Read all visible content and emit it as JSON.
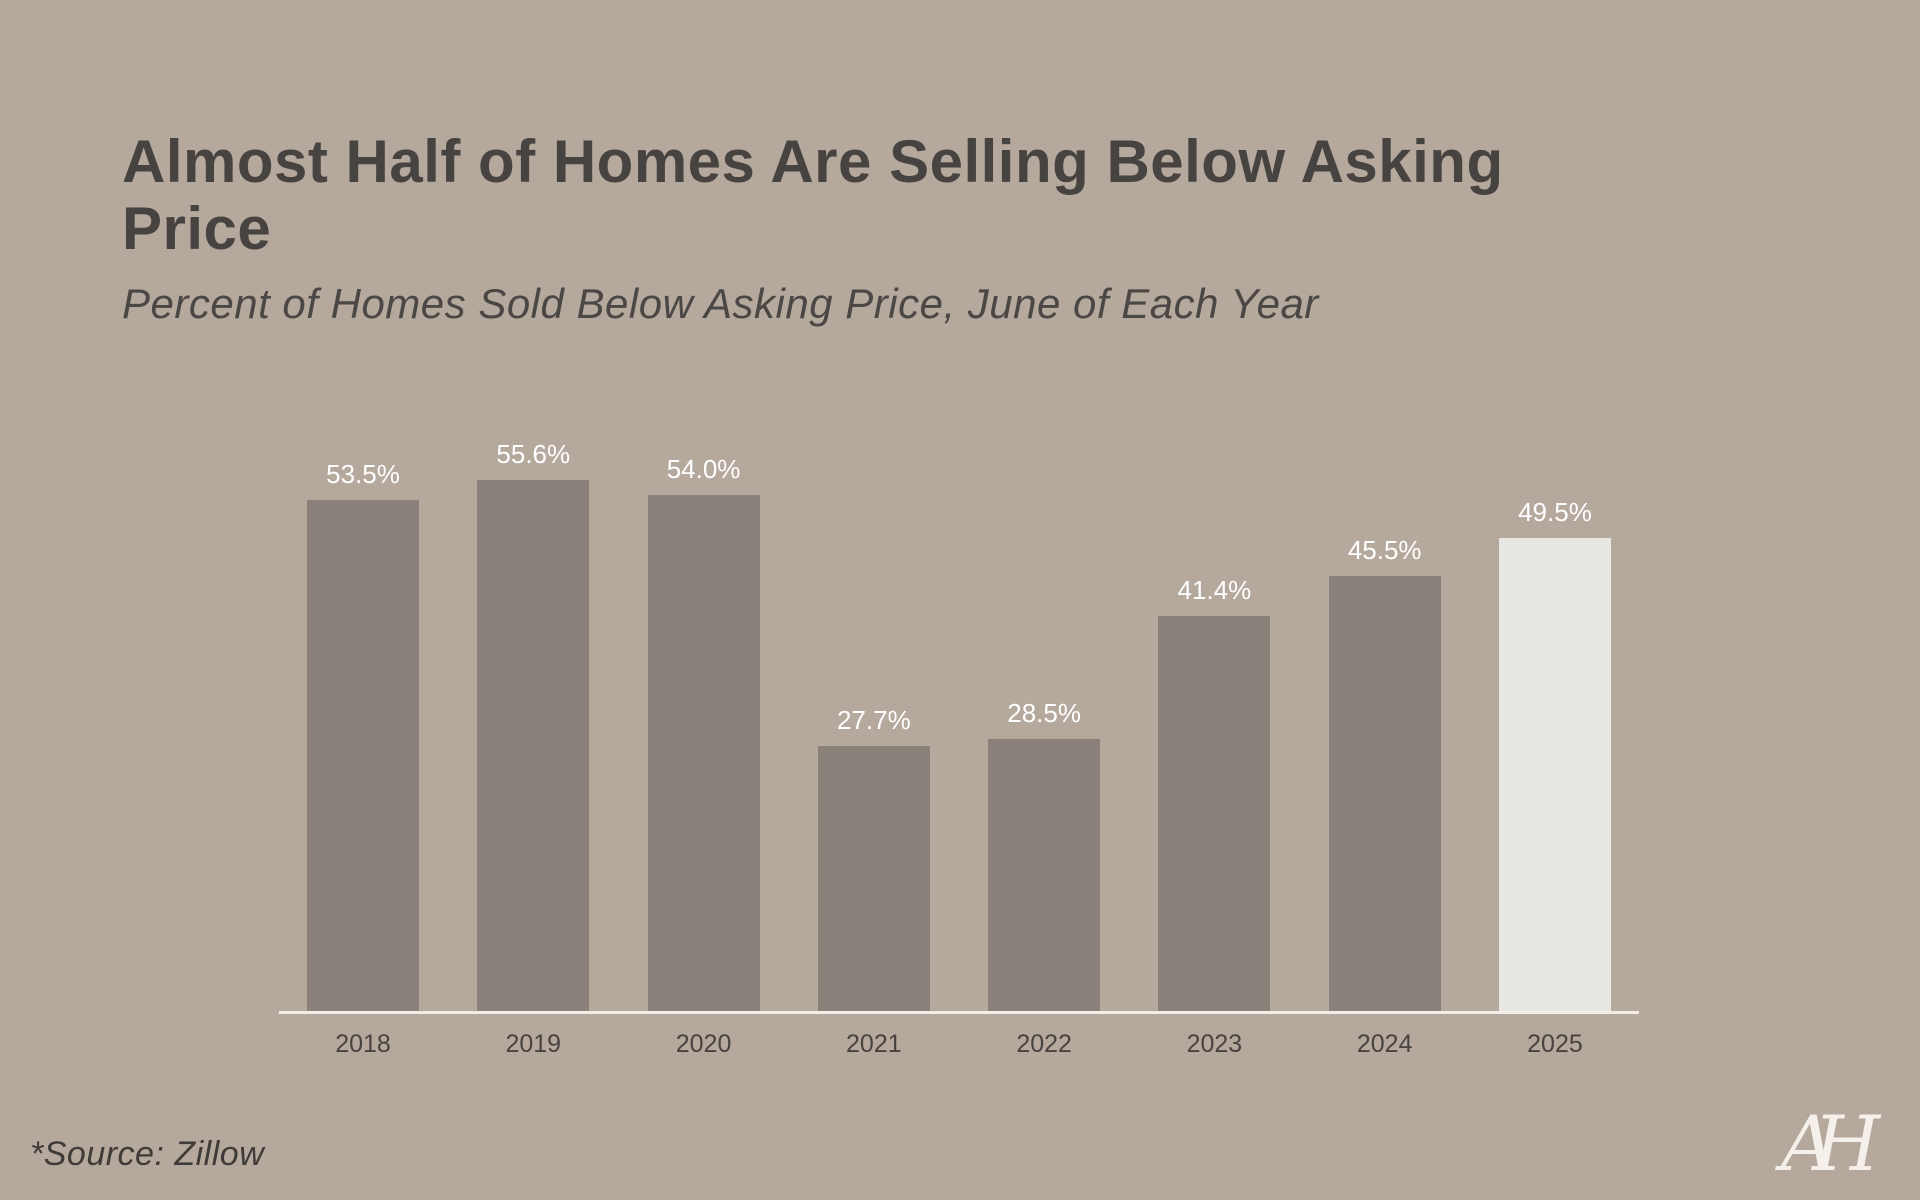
{
  "page": {
    "background_color": "#b5a89c"
  },
  "header": {
    "title": "Almost Half of Homes Are Selling Below Asking Price",
    "subtitle": "Percent of Homes Sold Below Asking Price, June of Each Year"
  },
  "chart_data": {
    "type": "bar",
    "title": "Almost Half of Homes Are Selling Below Asking Price",
    "subtitle": "Percent of Homes Sold Below Asking Price, June of Each Year",
    "categories": [
      "2018",
      "2019",
      "2020",
      "2021",
      "2022",
      "2023",
      "2024",
      "2025"
    ],
    "values": [
      53.5,
      55.6,
      54.0,
      27.7,
      28.5,
      41.4,
      45.5,
      49.5
    ],
    "value_labels": [
      "53.5%",
      "55.6%",
      "54.0%",
      "27.7%",
      "28.5%",
      "41.4%",
      "45.5%",
      "49.5%"
    ],
    "xlabel": "",
    "ylabel": "",
    "ylim": [
      0,
      60
    ],
    "grid": false,
    "legend": false,
    "bar_color": "#8a817a",
    "highlight_index": 7,
    "highlight_color": "#e9e7e3",
    "value_label_color": "#ffffff",
    "axis_label_color": "#474340",
    "baseline_color": "#f2ede7"
  },
  "footer": {
    "source": "*Source: Zillow",
    "logo_monogram_a": "A",
    "logo_monogram_h": "H"
  }
}
